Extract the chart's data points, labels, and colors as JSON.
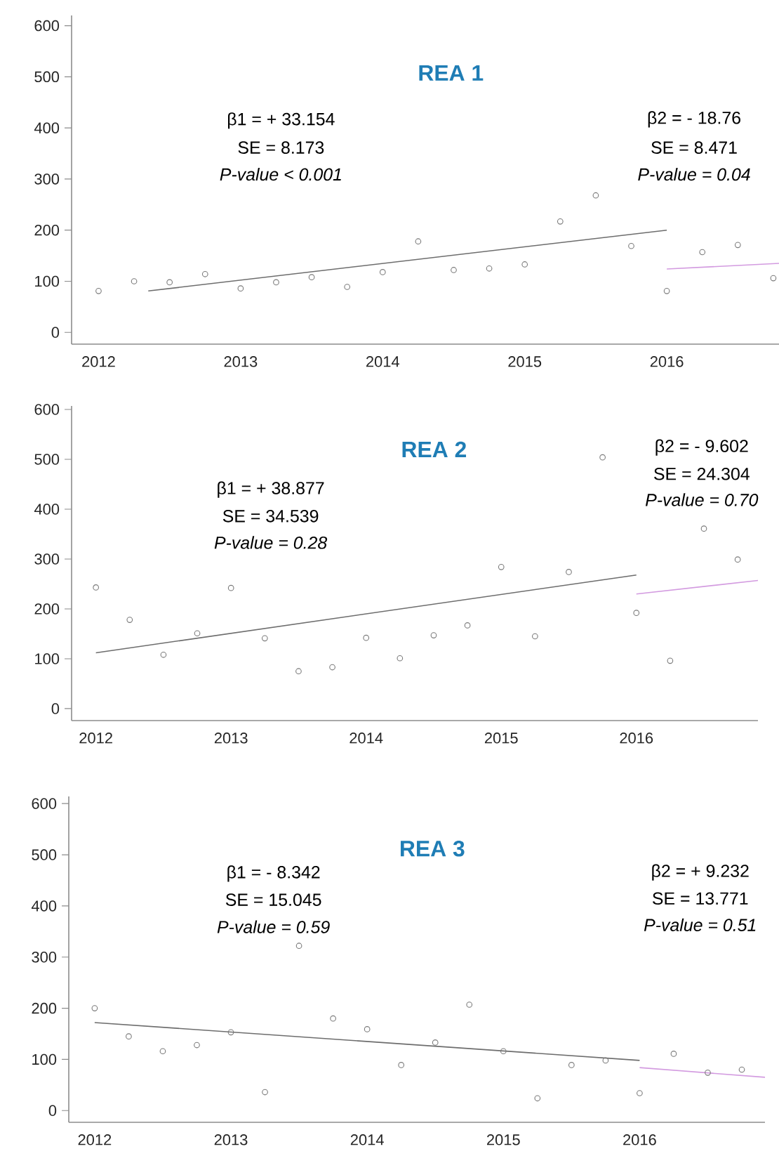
{
  "chart_data": [
    {
      "type": "scatter",
      "title": "REA 1",
      "xlim": [
        2011.81,
        2016.79
      ],
      "ylim": [
        -23,
        620
      ],
      "xticks": [
        2012,
        2013,
        2014,
        2015,
        2016
      ],
      "yticks": [
        0,
        100,
        200,
        300,
        400,
        500,
        600
      ],
      "x": [
        2012.0,
        2012.25,
        2012.5,
        2012.75,
        2013.0,
        2013.25,
        2013.5,
        2013.75,
        2014.0,
        2014.25,
        2014.5,
        2014.75,
        2015.0,
        2015.25,
        2015.5,
        2015.75,
        2016.0,
        2016.25,
        2016.5,
        2016.75
      ],
      "series": [
        {
          "marker": "circle",
          "color": "#7a7a7a",
          "values": [
            81,
            100,
            98,
            114,
            86,
            98,
            108,
            89,
            118,
            178,
            122,
            125,
            133,
            217,
            268,
            169,
            81,
            157,
            171,
            106
          ]
        },
        {
          "type": "line",
          "marker": "none",
          "color": "#6d6d6d",
          "x": [
            2012.35,
            2016.0
          ],
          "values": [
            81,
            200
          ]
        },
        {
          "type": "line",
          "marker": "none",
          "color": "#d39be0",
          "x": [
            2016.0,
            2016.79
          ],
          "values": [
            124,
            135
          ]
        }
      ],
      "annotations": [
        "β1 = + 33.154",
        "SE = 8.173",
        "P-value < 0.001",
        "β2 = - 18.76",
        "SE = 8.471",
        "P-value = 0.04"
      ]
    },
    {
      "type": "scatter",
      "title": "REA 2",
      "xlim": [
        2011.82,
        2016.9
      ],
      "ylim": [
        -24,
        607
      ],
      "xticks": [
        2012,
        2013,
        2014,
        2015,
        2016
      ],
      "yticks": [
        0,
        100,
        200,
        300,
        400,
        500,
        600
      ],
      "x": [
        2012.0,
        2012.25,
        2012.5,
        2012.75,
        2013.0,
        2013.25,
        2013.5,
        2013.75,
        2014.0,
        2014.25,
        2014.5,
        2014.75,
        2015.0,
        2015.25,
        2015.5,
        2015.75,
        2016.0,
        2016.25,
        2016.5,
        2016.75
      ],
      "series": [
        {
          "marker": "circle",
          "color": "#7a7a7a",
          "values": [
            243,
            178,
            108,
            151,
            242,
            141,
            75,
            83,
            142,
            101,
            147,
            167,
            284,
            145,
            274,
            504,
            192,
            96,
            361,
            299
          ]
        },
        {
          "type": "line",
          "marker": "none",
          "color": "#6d6d6d",
          "x": [
            2012.0,
            2016.0
          ],
          "values": [
            112,
            268
          ]
        },
        {
          "type": "line",
          "marker": "none",
          "color": "#d39be0",
          "x": [
            2016.0,
            2016.9
          ],
          "values": [
            230,
            257
          ]
        }
      ],
      "annotations": [
        "β1 = + 38.877",
        "SE = 34.539",
        "P-value = 0.28",
        "β2 = - 9.602",
        "SE = 24.304",
        "P-value = 0.70"
      ]
    },
    {
      "type": "scatter",
      "title": "REA 3",
      "xlim": [
        2011.81,
        2016.92
      ],
      "ylim": [
        -23,
        614
      ],
      "xticks": [
        2012,
        2013,
        2014,
        2015,
        2016
      ],
      "yticks": [
        0,
        100,
        200,
        300,
        400,
        500,
        600
      ],
      "x": [
        2012.0,
        2012.25,
        2012.5,
        2012.75,
        2013.0,
        2013.25,
        2013.5,
        2013.75,
        2014.0,
        2014.25,
        2014.5,
        2014.75,
        2015.0,
        2015.25,
        2015.5,
        2015.75,
        2016.0,
        2016.25,
        2016.5,
        2016.75
      ],
      "series": [
        {
          "marker": "circle",
          "color": "#7a7a7a",
          "values": [
            200,
            145,
            116,
            128,
            153,
            36,
            322,
            180,
            159,
            89,
            133,
            207,
            116,
            24,
            89,
            98,
            34,
            111,
            74,
            80
          ]
        },
        {
          "type": "line",
          "marker": "none",
          "color": "#6d6d6d",
          "x": [
            2012.0,
            2016.0
          ],
          "values": [
            172,
            98
          ]
        },
        {
          "type": "line",
          "marker": "none",
          "color": "#d39be0",
          "x": [
            2016.0,
            2016.92
          ],
          "values": [
            84,
            65
          ]
        }
      ],
      "annotations": [
        "β1 = - 8.342",
        "SE = 15.045",
        "P-value = 0.59",
        "β2 = + 9.232",
        "SE = 13.771",
        "P-value = 0.51"
      ]
    }
  ]
}
